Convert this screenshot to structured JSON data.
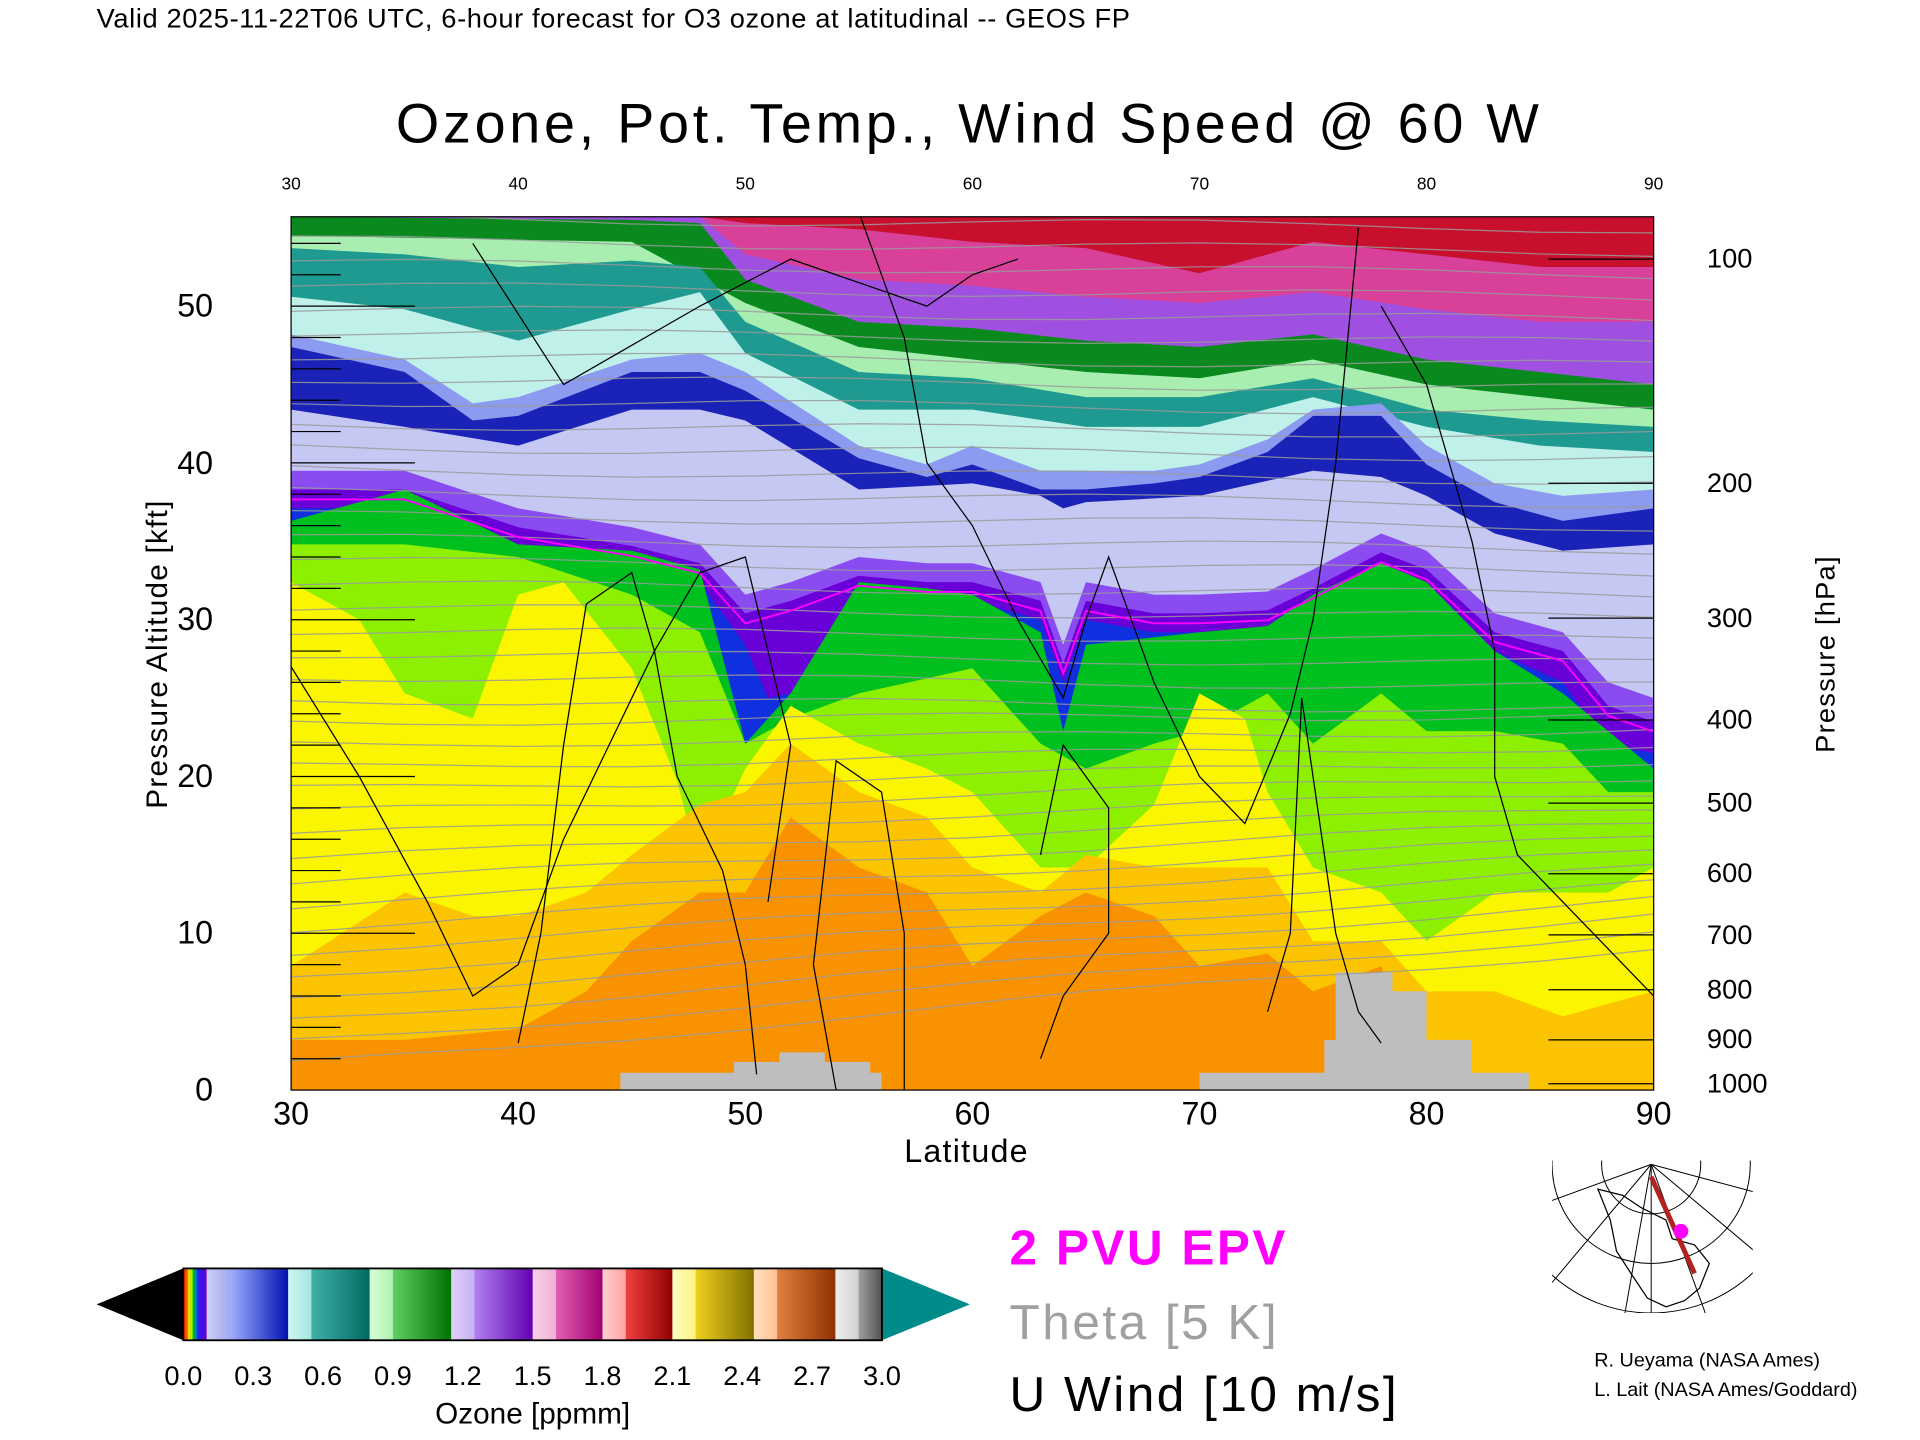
{
  "header": {
    "valid_line": "Valid 2025-11-22T06 UTC, 6-hour forecast for O3 ozone at latitudinal -- GEOS FP"
  },
  "chart_data": {
    "type": "contour",
    "title": "Ozone, Pot. Temp., Wind Speed @ 60 W",
    "xlabel": "Latitude",
    "ylabel": "Pressure Altitude [kft]",
    "ylabel_right": "Pressure [hPa]",
    "xlim": [
      30,
      90
    ],
    "ylim": [
      0,
      55.7
    ],
    "x_ticks": [
      "30",
      "40",
      "50",
      "60",
      "70",
      "80",
      "90"
    ],
    "top_ticks": [
      "30",
      "40",
      "50",
      "60",
      "70",
      "80",
      "90"
    ],
    "y_ticks": [
      "0",
      "10",
      "20",
      "30",
      "40",
      "50"
    ],
    "pressure_ticks": [
      {
        "label": "100",
        "kft": 53.0
      },
      {
        "label": "200",
        "kft": 38.7
      },
      {
        "label": "300",
        "kft": 30.1
      },
      {
        "label": "400",
        "kft": 23.6
      },
      {
        "label": "500",
        "kft": 18.3
      },
      {
        "label": "600",
        "kft": 13.8
      },
      {
        "label": "700",
        "kft": 9.9
      },
      {
        "label": "800",
        "kft": 6.4
      },
      {
        "label": "900",
        "kft": 3.2
      },
      {
        "label": "1000",
        "kft": 0.4
      }
    ],
    "ozone_bands": [
      {
        "ppmm": "2.1",
        "color": "#c8102e",
        "lat": [
          30,
          90
        ],
        "top_kft": [
          55.7,
          55.7
        ]
      },
      {
        "ppmm": "1.6",
        "color": "#d8409a",
        "lat": [
          30,
          48,
          50,
          55,
          60,
          65,
          70,
          75,
          80,
          85,
          90
        ],
        "top_kft": [
          55.7,
          55.7,
          55.3,
          54.9,
          54.1,
          53.7,
          52.1,
          54.1,
          53.3,
          52.5,
          52.5
        ]
      },
      {
        "ppmm": "1.3",
        "color": "#a050e0",
        "lat": [
          30,
          48,
          50,
          55,
          60,
          65,
          70,
          75,
          80,
          85,
          90
        ],
        "top_kft": [
          55.7,
          55.7,
          53.3,
          51.7,
          51.3,
          50.6,
          50.2,
          50.9,
          49.8,
          49.0,
          49.0
        ]
      },
      {
        "ppmm": "1.1",
        "color": "#0a8a1e",
        "lat": [
          30,
          45,
          48,
          50,
          55,
          60,
          65,
          70,
          75,
          80,
          85,
          90
        ],
        "top_kft": [
          55.7,
          55.5,
          55.3,
          51.7,
          49.0,
          48.6,
          47.8,
          47.4,
          48.2,
          46.6,
          45.8,
          45.0
        ]
      },
      {
        "ppmm": "0.95",
        "color": "#a8eeb0",
        "lat": [
          30,
          45,
          50,
          55,
          60,
          65,
          70,
          75,
          80,
          85,
          90
        ],
        "top_kft": [
          54.5,
          54.1,
          50.2,
          47.4,
          46.6,
          45.8,
          45.4,
          46.6,
          45.0,
          44.2,
          43.4
        ]
      },
      {
        "ppmm": "0.75",
        "color": "#1e9a90",
        "lat": [
          30,
          35,
          40,
          45,
          48,
          50,
          55,
          60,
          65,
          70,
          75,
          80,
          85,
          90
        ],
        "top_kft": [
          53.7,
          53.3,
          52.5,
          52.9,
          52.5,
          49.0,
          45.8,
          45.4,
          44.2,
          44.2,
          45.4,
          43.4,
          42.7,
          42.3
        ]
      },
      {
        "ppmm": "0.6",
        "color": "#bff0ea",
        "lat": [
          30,
          35,
          40,
          45,
          48,
          50,
          55,
          60,
          65,
          70,
          75,
          80,
          85,
          90
        ],
        "top_kft": [
          50.6,
          49.8,
          47.8,
          49.8,
          50.9,
          47.0,
          43.4,
          43.4,
          42.3,
          42.3,
          44.2,
          42.3,
          41.1,
          40.7
        ]
      },
      {
        "ppmm": "0.45",
        "color": "#8c9af0",
        "lat": [
          30,
          35,
          38,
          40,
          45,
          48,
          50,
          55,
          58,
          60,
          63,
          65,
          68,
          70,
          73,
          75,
          78,
          80,
          83,
          86,
          90
        ],
        "top_kft": [
          48.2,
          46.6,
          43.8,
          44.2,
          46.6,
          47.0,
          45.8,
          41.1,
          39.9,
          41.1,
          39.5,
          39.5,
          39.5,
          39.9,
          41.5,
          43.4,
          43.8,
          41.1,
          38.7,
          37.9,
          38.3
        ]
      },
      {
        "ppmm": "0.35",
        "color": "#1a22b8",
        "lat": [
          30,
          35,
          38,
          40,
          45,
          48,
          50,
          55,
          58,
          60,
          63,
          65,
          68,
          70,
          73,
          75,
          78,
          80,
          83,
          86,
          90
        ],
        "top_kft": [
          47.4,
          45.8,
          42.7,
          43.0,
          45.8,
          45.8,
          44.6,
          40.3,
          39.1,
          39.9,
          38.3,
          38.3,
          38.7,
          39.1,
          40.7,
          43.0,
          43.0,
          39.9,
          37.5,
          36.3,
          37.1
        ]
      },
      {
        "ppmm": "0.25",
        "color": "#c6c8f4",
        "lat": [
          30,
          35,
          40,
          45,
          48,
          50,
          55,
          60,
          63,
          64,
          65,
          70,
          75,
          78,
          80,
          83,
          86,
          90
        ],
        "top_kft": [
          43.4,
          42.3,
          41.1,
          43.4,
          43.4,
          42.7,
          38.3,
          38.7,
          37.9,
          37.1,
          37.5,
          37.9,
          39.5,
          39.1,
          37.9,
          35.5,
          34.4,
          34.8
        ]
      },
      {
        "ppmm": "0.15",
        "color": "#8a4cf0",
        "lat": [
          30,
          35,
          40,
          45,
          48,
          50,
          52,
          55,
          58,
          60,
          63,
          64,
          65,
          68,
          70,
          73,
          75,
          78,
          80,
          83,
          86,
          88,
          90
        ],
        "top_kft": [
          39.5,
          39.5,
          37.1,
          35.9,
          34.8,
          31.6,
          32.4,
          34.0,
          33.6,
          33.6,
          32.4,
          28.4,
          32.4,
          31.6,
          31.6,
          31.8,
          33.2,
          35.5,
          34.4,
          30.4,
          29.2,
          26.0,
          25.0
        ]
      },
      {
        "ppmm": "0.12",
        "color": "#6a00d8",
        "lat": [
          30,
          35,
          40,
          45,
          48,
          50,
          52,
          55,
          58,
          60,
          63,
          64,
          65,
          68,
          70,
          73,
          75,
          78,
          80,
          83,
          86,
          88,
          90
        ],
        "top_kft": [
          38.3,
          38.3,
          35.9,
          34.7,
          33.6,
          30.4,
          31.2,
          32.8,
          32.4,
          32.4,
          31.2,
          27.2,
          31.2,
          30.4,
          30.4,
          30.6,
          32.0,
          34.3,
          33.2,
          29.2,
          28.0,
          24.5,
          23.5
        ]
      },
      {
        "ppmm": "0.1",
        "color": "#1030e0",
        "lat": [
          30,
          35,
          40,
          45,
          48,
          50,
          51,
          52,
          55,
          58,
          60,
          63,
          64,
          65,
          68,
          70,
          73,
          75,
          78,
          80,
          83,
          86,
          88,
          90
        ],
        "top_kft": [
          37.1,
          37.1,
          34.8,
          33.6,
          32.4,
          28.4,
          25.0,
          25.3,
          31.6,
          31.2,
          31.2,
          30.0,
          26.0,
          30.0,
          29.2,
          29.2,
          29.4,
          30.8,
          33.2,
          32.0,
          28.0,
          26.0,
          22.0,
          21.5
        ]
      },
      {
        "ppmm": "0.08",
        "color": "#00c020",
        "lat": [
          30,
          35,
          40,
          45,
          48,
          50,
          52,
          55,
          58,
          60,
          63,
          64,
          65,
          70,
          73,
          75,
          78,
          80,
          83,
          86,
          88,
          90
        ],
        "top_kft": [
          36.3,
          38.3,
          34.8,
          34.4,
          33.2,
          22.1,
          25.3,
          32.4,
          32.0,
          31.6,
          29.2,
          22.9,
          28.4,
          29.2,
          29.6,
          31.6,
          33.6,
          32.4,
          28.0,
          25.3,
          22.9,
          20.5
        ]
      },
      {
        "ppmm": "0.07",
        "color": "#8cf000",
        "lat": [
          30,
          35,
          40,
          45,
          48,
          50,
          52,
          55,
          60,
          63,
          65,
          68,
          70,
          73,
          75,
          78,
          80,
          83,
          86,
          88,
          90
        ],
        "top_kft": [
          34.8,
          34.8,
          34.0,
          31.6,
          29.2,
          22.1,
          23.7,
          25.3,
          26.9,
          22.1,
          20.5,
          22.1,
          22.9,
          25.3,
          22.1,
          25.3,
          22.9,
          22.9,
          22.1,
          19.0,
          19.0
        ]
      },
      {
        "ppmm": "0.06",
        "color": "#fbf500",
        "lat": [
          30,
          33,
          35,
          38,
          40,
          42,
          45,
          47,
          48,
          50,
          52,
          55,
          58,
          60,
          63,
          65,
          68,
          70,
          72,
          73,
          75,
          78,
          80,
          83,
          86,
          88,
          90
        ],
        "top_kft": [
          32.4,
          30.0,
          25.3,
          23.7,
          31.6,
          32.4,
          26.9,
          19.7,
          14.2,
          20.5,
          24.5,
          22.1,
          20.5,
          19.0,
          14.2,
          14.2,
          18.2,
          25.3,
          23.7,
          19.0,
          14.2,
          12.6,
          9.5,
          12.6,
          12.6,
          12.6,
          14.2
        ]
      },
      {
        "ppmm": "0.05",
        "color": "#fcc400",
        "lat": [
          30,
          35,
          38,
          40,
          43,
          45,
          48,
          50,
          52,
          55,
          58,
          60,
          63,
          65,
          68,
          70,
          73,
          75,
          78,
          80,
          83,
          86,
          90
        ],
        "top_kft": [
          7.9,
          12.6,
          11.1,
          11.1,
          12.6,
          15.0,
          18.2,
          19.0,
          22.1,
          19.0,
          17.4,
          14.2,
          12.6,
          15.0,
          14.2,
          14.2,
          14.2,
          9.5,
          9.5,
          6.3,
          6.3,
          4.7,
          6.3
        ]
      },
      {
        "ppmm": "0.04",
        "color": "#f99200",
        "lat": [
          30,
          35,
          40,
          43,
          45,
          48,
          50,
          52,
          55,
          58,
          60,
          63,
          65,
          68,
          70,
          73,
          75,
          78,
          80,
          90
        ],
        "top_kft": [
          3.2,
          3.2,
          3.9,
          6.3,
          9.5,
          12.6,
          12.6,
          17.4,
          14.2,
          12.6,
          7.9,
          11.1,
          12.6,
          11.1,
          7.9,
          8.7,
          6.3,
          7.9,
          0,
          0
        ]
      }
    ],
    "terrain": {
      "color": "#bebebe",
      "lat": [
        44.5,
        44.5,
        49.5,
        49.5,
        51.5,
        51.5,
        53.5,
        53.5,
        55.5,
        55.5,
        56,
        56,
        70,
        70,
        75.5,
        75.5,
        76,
        76,
        78.5,
        78.5,
        80,
        80,
        82,
        82,
        84.5,
        84.5
      ],
      "kft": [
        0,
        1.1,
        1.1,
        1.8,
        1.8,
        2.4,
        2.4,
        1.8,
        1.8,
        1.1,
        1.1,
        0,
        0,
        1.1,
        1.1,
        3.2,
        3.2,
        7.5,
        7.5,
        6.3,
        6.3,
        3.2,
        3.2,
        1.1,
        1.1,
        0
      ]
    },
    "colorbar": {
      "label": "Ozone [ppmm]",
      "range": [
        0,
        3.0
      ],
      "ticks": [
        "0.0",
        "0.3",
        "0.6",
        "0.9",
        "1.2",
        "1.5",
        "1.8",
        "2.1",
        "2.4",
        "2.7",
        "3.0"
      ],
      "under_color": "#000000",
      "over_color": "#008b8b"
    },
    "legend": [
      {
        "text": "2 PVU EPV",
        "color": "#ff00ff"
      },
      {
        "text": "Theta [5 K]",
        "color": "#a0a0a0"
      },
      {
        "text": "U Wind [10 m/s]",
        "color": "#000000"
      }
    ]
  },
  "credits": [
    "R. Ueyama (NASA Ames)",
    "L. Lait (NASA Ames/Goddard)"
  ],
  "map_inset": {
    "section_color": "#b22222",
    "marker_color": "#ff00ff"
  }
}
